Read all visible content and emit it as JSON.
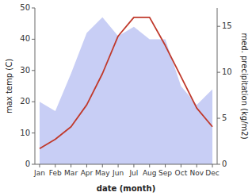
{
  "chart_data": {
    "type": "line",
    "xlabel": "date (month)",
    "ylabel": "max temp (C)",
    "y2label": "med. precipitation (kg/m2)",
    "categories": [
      "Jan",
      "Feb",
      "Mar",
      "Apr",
      "May",
      "Jun",
      "Jul",
      "Aug",
      "Sep",
      "Oct",
      "Nov",
      "Dec"
    ],
    "series": [
      {
        "type": "area",
        "color": "#c8cef5",
        "values": [
          20,
          17,
          29,
          42,
          47,
          41,
          44,
          40,
          40,
          25,
          19,
          24
        ]
      },
      {
        "type": "line",
        "color": "#c0392b",
        "values": [
          5,
          8,
          12,
          19,
          29,
          41,
          47,
          47,
          38,
          28,
          18,
          12
        ]
      }
    ],
    "ylim": [
      0,
      50
    ],
    "yticks": [
      0,
      10,
      20,
      30,
      40,
      50
    ],
    "y2lim": [
      0,
      17
    ],
    "y2ticks": [
      0,
      5,
      10,
      15
    ],
    "grid": false
  }
}
